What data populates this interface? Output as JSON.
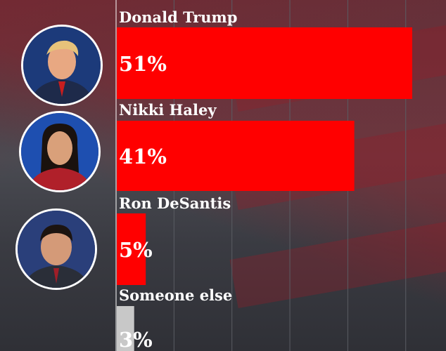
{
  "chart_data": {
    "type": "bar",
    "orientation": "horizontal",
    "categories": [
      "Donald Trump",
      "Nikki Haley",
      "Ron DeSantis",
      "Someone else"
    ],
    "values": [
      51,
      41,
      5,
      3
    ],
    "value_labels": [
      "51%",
      "41%",
      "5%",
      "3%"
    ],
    "unit": "%",
    "xlim": [
      0,
      57
    ],
    "grid": true,
    "title": "",
    "xlabel": "",
    "ylabel": ""
  },
  "colors": {
    "bar": "#ff0000",
    "bar_other": "#c8c8c8",
    "text": "#ffffff",
    "grid": "#5a5c63",
    "axis": "#ffffff"
  },
  "avatars": [
    {
      "name": "donald-trump-avatar",
      "skin": "#e8a882",
      "hair": "#e6c27a",
      "suit": "#1e2a4a",
      "tie": "#c81e1e",
      "bg": "#1c3a7a"
    },
    {
      "name": "nikki-haley-avatar",
      "skin": "#d9a07a",
      "hair": "#1a120e",
      "suit": "#b0202a",
      "tie": "",
      "bg": "#1e4fb0"
    },
    {
      "name": "ron-desantis-avatar",
      "skin": "#d49a78",
      "hair": "#1c1410",
      "suit": "#2a2e38",
      "tie": "#a01e28",
      "bg": "#2a3f7a"
    }
  ]
}
